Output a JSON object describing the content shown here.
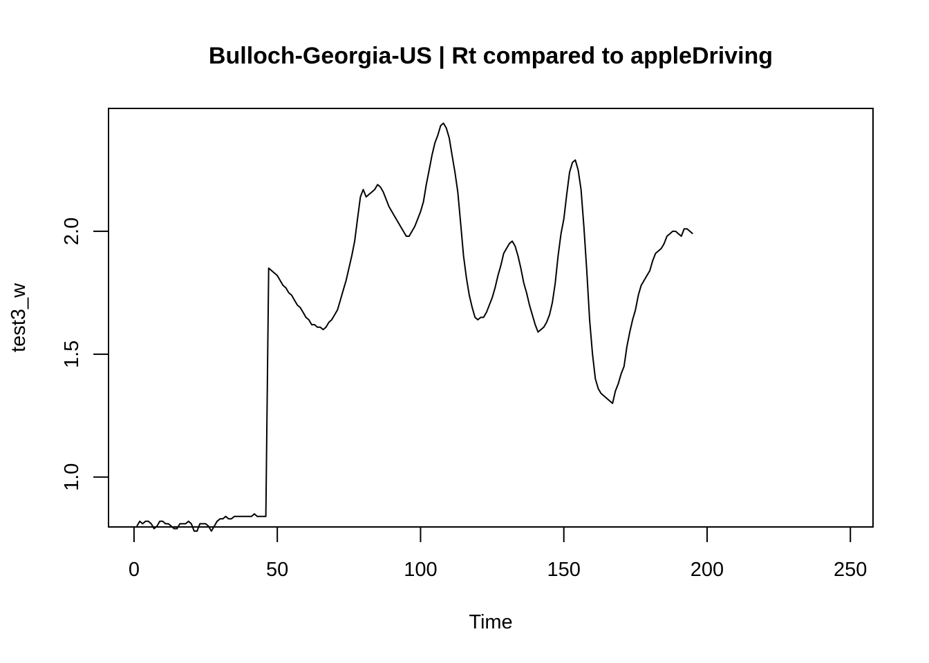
{
  "chart_data": {
    "type": "line",
    "title": "Bulloch-Georgia-US | Rt compared to appleDriving",
    "xlabel": "Time",
    "ylabel": "test3_w",
    "xlim": [
      -8.9,
      257.9
    ],
    "ylim": [
      0.797,
      2.5
    ],
    "xticks": [
      0,
      50,
      100,
      150,
      200,
      250
    ],
    "xtick_labels": [
      "0",
      "50",
      "100",
      "150",
      "200",
      "250"
    ],
    "yticks": [
      1.0,
      1.5,
      2.0
    ],
    "ytick_labels": [
      "1.0",
      "1.5",
      "2.0"
    ],
    "grid": false,
    "legend": "none",
    "line_color": "#000000",
    "series": [
      {
        "points": [
          [
            1,
            0.8
          ],
          [
            2,
            0.82
          ],
          [
            3,
            0.81
          ],
          [
            4,
            0.82
          ],
          [
            5,
            0.82
          ],
          [
            6,
            0.81
          ],
          [
            7,
            0.79
          ],
          [
            8,
            0.8
          ],
          [
            9,
            0.82
          ],
          [
            10,
            0.82
          ],
          [
            11,
            0.81
          ],
          [
            12,
            0.81
          ],
          [
            13,
            0.8
          ],
          [
            14,
            0.79
          ],
          [
            15,
            0.79
          ],
          [
            16,
            0.81
          ],
          [
            17,
            0.81
          ],
          [
            18,
            0.81
          ],
          [
            19,
            0.82
          ],
          [
            20,
            0.81
          ],
          [
            21,
            0.78
          ],
          [
            22,
            0.78
          ],
          [
            23,
            0.81
          ],
          [
            24,
            0.81
          ],
          [
            25,
            0.81
          ],
          [
            26,
            0.8
          ],
          [
            27,
            0.78
          ],
          [
            28,
            0.8
          ],
          [
            29,
            0.82
          ],
          [
            30,
            0.83
          ],
          [
            31,
            0.83
          ],
          [
            32,
            0.84
          ],
          [
            33,
            0.83
          ],
          [
            34,
            0.83
          ],
          [
            35,
            0.84
          ],
          [
            36,
            0.84
          ],
          [
            37,
            0.84
          ],
          [
            38,
            0.84
          ],
          [
            39,
            0.84
          ],
          [
            40,
            0.84
          ],
          [
            41,
            0.84
          ],
          [
            42,
            0.85
          ],
          [
            43,
            0.84
          ],
          [
            44,
            0.84
          ],
          [
            45,
            0.84
          ],
          [
            46,
            0.84
          ],
          [
            47,
            1.85
          ],
          [
            48,
            1.84
          ],
          [
            49,
            1.83
          ],
          [
            50,
            1.82
          ],
          [
            51,
            1.8
          ],
          [
            52,
            1.78
          ],
          [
            53,
            1.77
          ],
          [
            54,
            1.75
          ],
          [
            55,
            1.74
          ],
          [
            56,
            1.72
          ],
          [
            57,
            1.7
          ],
          [
            58,
            1.69
          ],
          [
            59,
            1.67
          ],
          [
            60,
            1.65
          ],
          [
            61,
            1.64
          ],
          [
            62,
            1.62
          ],
          [
            63,
            1.62
          ],
          [
            64,
            1.61
          ],
          [
            65,
            1.61
          ],
          [
            66,
            1.6
          ],
          [
            67,
            1.61
          ],
          [
            68,
            1.63
          ],
          [
            69,
            1.64
          ],
          [
            70,
            1.66
          ],
          [
            71,
            1.68
          ],
          [
            72,
            1.72
          ],
          [
            73,
            1.76
          ],
          [
            74,
            1.8
          ],
          [
            75,
            1.85
          ],
          [
            76,
            1.9
          ],
          [
            77,
            1.96
          ],
          [
            78,
            2.05
          ],
          [
            79,
            2.14
          ],
          [
            80,
            2.17
          ],
          [
            81,
            2.14
          ],
          [
            82,
            2.15
          ],
          [
            83,
            2.16
          ],
          [
            84,
            2.17
          ],
          [
            85,
            2.19
          ],
          [
            86,
            2.18
          ],
          [
            87,
            2.16
          ],
          [
            88,
            2.13
          ],
          [
            89,
            2.1
          ],
          [
            90,
            2.08
          ],
          [
            91,
            2.06
          ],
          [
            92,
            2.04
          ],
          [
            93,
            2.02
          ],
          [
            94,
            2.0
          ],
          [
            95,
            1.98
          ],
          [
            96,
            1.98
          ],
          [
            97,
            2.0
          ],
          [
            98,
            2.02
          ],
          [
            99,
            2.05
          ],
          [
            100,
            2.08
          ],
          [
            101,
            2.12
          ],
          [
            102,
            2.19
          ],
          [
            103,
            2.25
          ],
          [
            104,
            2.31
          ],
          [
            105,
            2.36
          ],
          [
            106,
            2.39
          ],
          [
            107,
            2.43
          ],
          [
            108,
            2.44
          ],
          [
            109,
            2.42
          ],
          [
            110,
            2.38
          ],
          [
            111,
            2.31
          ],
          [
            112,
            2.24
          ],
          [
            113,
            2.16
          ],
          [
            114,
            2.03
          ],
          [
            115,
            1.9
          ],
          [
            116,
            1.81
          ],
          [
            117,
            1.74
          ],
          [
            118,
            1.69
          ],
          [
            119,
            1.65
          ],
          [
            120,
            1.64
          ],
          [
            121,
            1.65
          ],
          [
            122,
            1.65
          ],
          [
            123,
            1.67
          ],
          [
            124,
            1.7
          ],
          [
            125,
            1.73
          ],
          [
            126,
            1.77
          ],
          [
            127,
            1.82
          ],
          [
            128,
            1.86
          ],
          [
            129,
            1.91
          ],
          [
            130,
            1.93
          ],
          [
            131,
            1.95
          ],
          [
            132,
            1.96
          ],
          [
            133,
            1.94
          ],
          [
            134,
            1.9
          ],
          [
            135,
            1.85
          ],
          [
            136,
            1.79
          ],
          [
            137,
            1.75
          ],
          [
            138,
            1.7
          ],
          [
            139,
            1.66
          ],
          [
            140,
            1.62
          ],
          [
            141,
            1.59
          ],
          [
            142,
            1.6
          ],
          [
            143,
            1.61
          ],
          [
            144,
            1.63
          ],
          [
            145,
            1.66
          ],
          [
            146,
            1.71
          ],
          [
            147,
            1.79
          ],
          [
            148,
            1.9
          ],
          [
            149,
            1.99
          ],
          [
            150,
            2.05
          ],
          [
            151,
            2.15
          ],
          [
            152,
            2.24
          ],
          [
            153,
            2.28
          ],
          [
            154,
            2.29
          ],
          [
            155,
            2.25
          ],
          [
            156,
            2.17
          ],
          [
            157,
            2.02
          ],
          [
            158,
            1.84
          ],
          [
            159,
            1.64
          ],
          [
            160,
            1.5
          ],
          [
            161,
            1.4
          ],
          [
            162,
            1.36
          ],
          [
            163,
            1.34
          ],
          [
            164,
            1.33
          ],
          [
            165,
            1.32
          ],
          [
            166,
            1.31
          ],
          [
            167,
            1.3
          ],
          [
            168,
            1.35
          ],
          [
            169,
            1.38
          ],
          [
            170,
            1.42
          ],
          [
            171,
            1.45
          ],
          [
            172,
            1.53
          ],
          [
            173,
            1.59
          ],
          [
            174,
            1.64
          ],
          [
            175,
            1.68
          ],
          [
            176,
            1.74
          ],
          [
            177,
            1.78
          ],
          [
            178,
            1.8
          ],
          [
            179,
            1.82
          ],
          [
            180,
            1.84
          ],
          [
            181,
            1.88
          ],
          [
            182,
            1.91
          ],
          [
            183,
            1.92
          ],
          [
            184,
            1.93
          ],
          [
            185,
            1.95
          ],
          [
            186,
            1.98
          ],
          [
            187,
            1.99
          ],
          [
            188,
            2.0
          ],
          [
            189,
            2.0
          ],
          [
            190,
            1.99
          ],
          [
            191,
            1.98
          ],
          [
            192,
            2.01
          ],
          [
            193,
            2.01
          ],
          [
            194,
            2.0
          ],
          [
            195,
            1.99
          ]
        ]
      }
    ]
  }
}
